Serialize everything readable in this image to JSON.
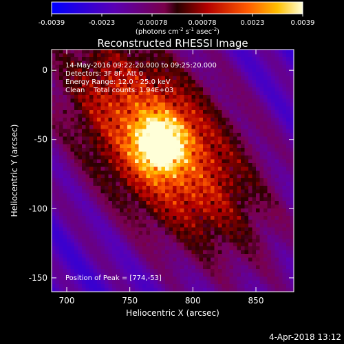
{
  "colorbar": {
    "ticks": [
      "-0.0039",
      "-0.0023",
      "-0.00078",
      "0.00078",
      "0.0023",
      "0.0039"
    ],
    "unit_prefix": "(photons cm",
    "unit_exp1": "-2",
    "unit_mid1": " s",
    "unit_exp2": "-1",
    "unit_mid2": " asec",
    "unit_exp3": "-2",
    "unit_suffix": ")"
  },
  "chart_data": {
    "type": "heatmap",
    "title": "Reconstructed RHESSI Image",
    "xlabel": "Heliocentric X (arcsec)",
    "ylabel": "Heliocentric Y (arcsec)",
    "xlim": [
      688,
      880
    ],
    "ylim": [
      -160,
      15
    ],
    "x_ticks": [
      700,
      750,
      800,
      850
    ],
    "y_ticks": [
      0,
      -50,
      -100,
      -150
    ],
    "color_range": [
      -0.0039,
      0.0039
    ],
    "peak": [
      774,
      -53
    ],
    "annotations": [
      "14-May-2016 09:22:20.000 to 09:25:20.000",
      "Detectors: 3F 8F, Att 0",
      "Energy Range: 12.0 - 25.0 keV",
      "Clean    Total counts: 1.94E+03"
    ],
    "peak_label": "Position of Peak = [774,-53]"
  },
  "footer": {
    "timestamp": "4-Apr-2018 13:12"
  }
}
